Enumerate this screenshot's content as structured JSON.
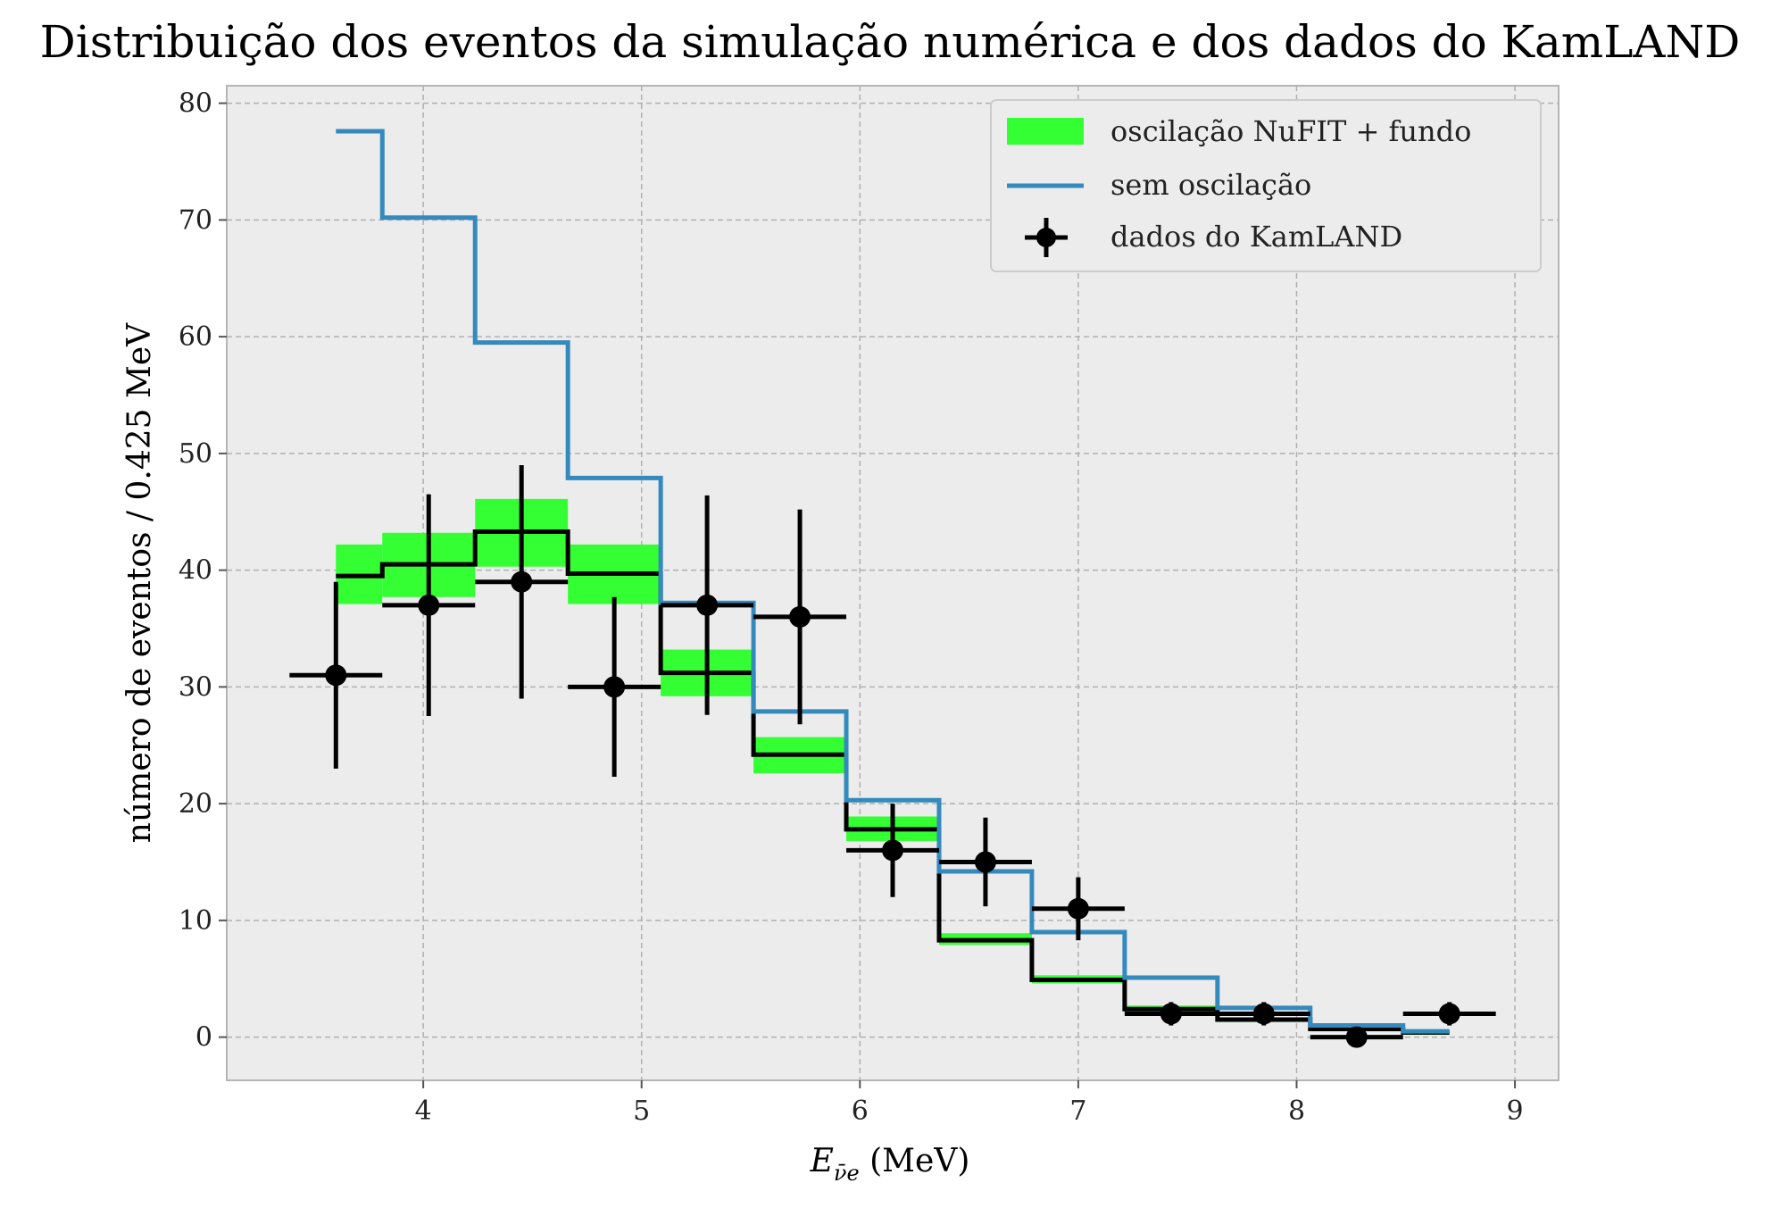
{
  "chart_data": {
    "type": "step",
    "title": "Distribuição dos eventos da simulação numérica e dos dados do KamLAND",
    "xlabel_main": "E",
    "xlabel_sub": "ν̄e",
    "xlabel_unit": " (MeV)",
    "ylabel": "número de eventos / 0.425 MeV",
    "xlim": [
      3.1,
      9.2
    ],
    "ylim": [
      -3.7,
      81.5
    ],
    "xticks": [
      4,
      5,
      6,
      7,
      8,
      9
    ],
    "yticks": [
      0,
      10,
      20,
      30,
      40,
      50,
      60,
      70,
      80
    ],
    "grid": true,
    "legend_position": "top-right",
    "bin_edges": [
      3.6,
      3.8125,
      4.2375,
      4.6625,
      5.0875,
      5.5125,
      5.9375,
      6.3625,
      6.7875,
      7.2125,
      7.6375,
      8.0625,
      8.4875,
      8.7
    ],
    "series": [
      {
        "name": "oscilação NuFIT + fundo",
        "kind": "band",
        "color": "#33ff33",
        "centers": [
          39.5,
          40.5,
          43.3,
          39.7,
          31.2,
          24.2,
          17.8,
          8.3,
          4.9,
          2.4,
          1.5,
          0.7,
          0.4
        ],
        "lower": [
          37.1,
          37.7,
          40.3,
          37.1,
          29.2,
          22.6,
          16.8,
          7.9,
          4.6,
          2.2,
          1.3,
          0.5,
          0.2
        ],
        "upper": [
          42.2,
          43.2,
          46.1,
          42.2,
          33.2,
          25.7,
          18.9,
          8.9,
          5.3,
          2.7,
          1.7,
          0.9,
          0.6
        ]
      },
      {
        "name": "sem oscilação",
        "kind": "step",
        "color": "#348abd",
        "values": [
          77.6,
          70.2,
          59.5,
          47.9,
          37.2,
          27.9,
          20.3,
          14.2,
          9.0,
          5.1,
          2.5,
          1.0,
          0.5
        ]
      },
      {
        "name": "dados do KamLAND",
        "kind": "errorbar",
        "color": "#000000",
        "x": [
          3.6,
          4.025,
          4.45,
          4.875,
          5.3,
          5.725,
          6.15,
          6.575,
          7.0,
          7.425,
          7.85,
          8.275,
          8.7
        ],
        "y": [
          31,
          37,
          39,
          30,
          37,
          36,
          16,
          15,
          11,
          2,
          2,
          0,
          2
        ],
        "yerr_low": [
          8,
          9.5,
          10,
          7.7,
          9.4,
          9.2,
          4,
          3.8,
          2.7,
          1.0,
          1.0,
          0.5,
          1.0
        ],
        "yerr_high": [
          8,
          9.5,
          10,
          7.7,
          9.4,
          9.2,
          4,
          3.8,
          2.7,
          1.0,
          1.0,
          0.5,
          1.0
        ],
        "xerr": 0.2125
      }
    ]
  }
}
